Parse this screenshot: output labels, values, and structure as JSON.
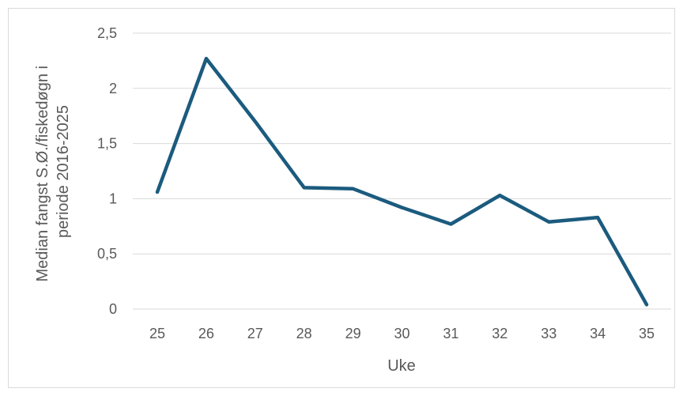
{
  "chart_data": {
    "type": "line",
    "title": "",
    "xlabel": "Uke",
    "ylabel_line1": "Median fangst S.Ø./fiskedøgn i",
    "ylabel_line2": "periode 2016-2025",
    "categories": [
      "25",
      "26",
      "27",
      "28",
      "29",
      "30",
      "31",
      "32",
      "33",
      "34",
      "35"
    ],
    "series": [
      {
        "values": [
          1.06,
          2.27,
          1.7,
          1.1,
          1.09,
          0.92,
          0.77,
          1.03,
          0.79,
          0.83,
          0.04
        ]
      }
    ],
    "ylim": [
      0,
      2.5
    ],
    "yticks": [
      {
        "value": 0,
        "label": "0"
      },
      {
        "value": 0.5,
        "label": "0,5"
      },
      {
        "value": 1,
        "label": "1"
      },
      {
        "value": 1.5,
        "label": "1,5"
      },
      {
        "value": 2,
        "label": "2"
      },
      {
        "value": 2.5,
        "label": "2,5"
      }
    ],
    "grid": true,
    "legend": "none",
    "line_color": "#1b5b7e"
  }
}
